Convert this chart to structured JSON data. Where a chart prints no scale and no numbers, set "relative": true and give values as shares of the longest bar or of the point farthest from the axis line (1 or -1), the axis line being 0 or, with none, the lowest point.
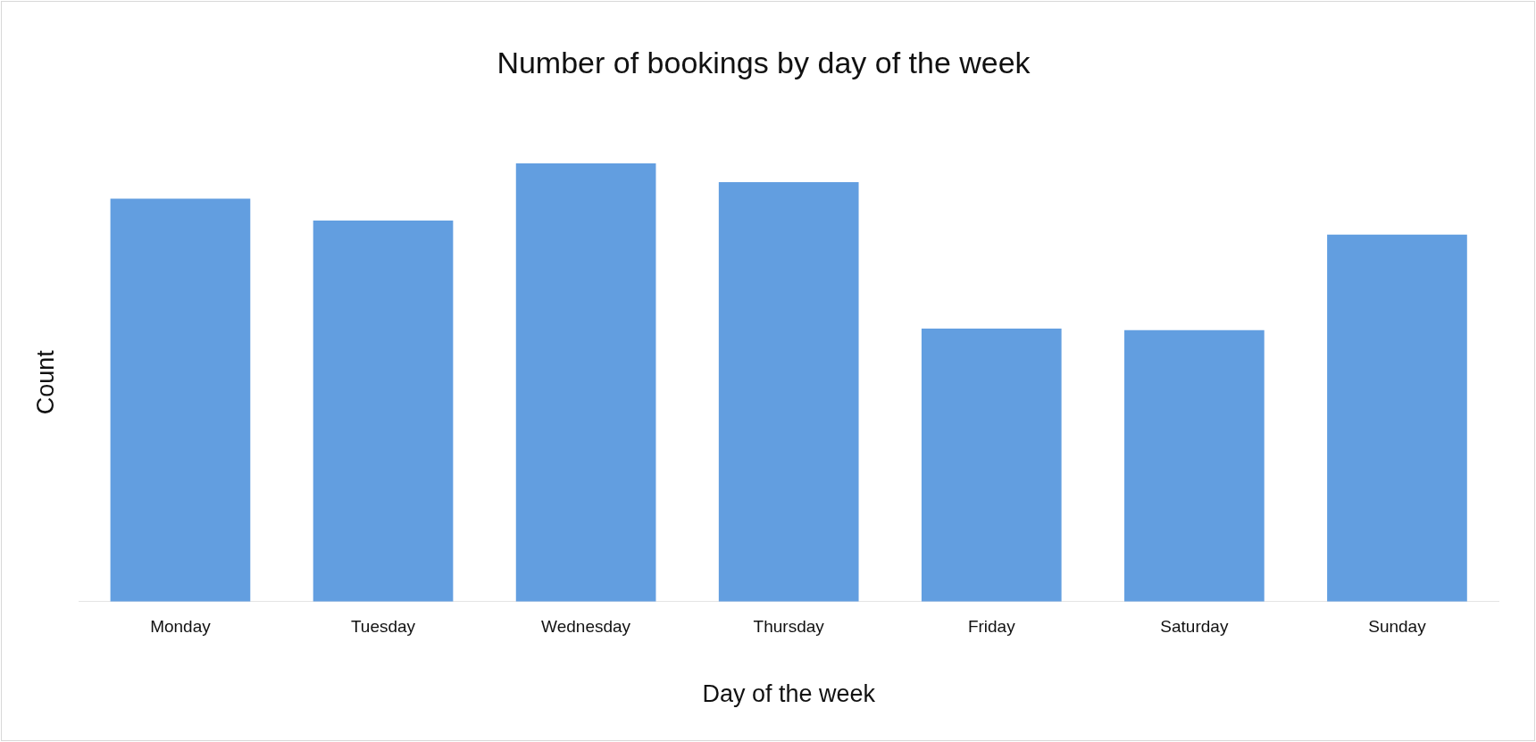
{
  "chart_data": {
    "type": "bar",
    "title": "Number of bookings by day of the week",
    "xlabel": "Day of the week",
    "ylabel": "Count",
    "categories": [
      "Monday",
      "Tuesday",
      "Wednesday",
      "Thursday",
      "Friday",
      "Saturday",
      "Sunday"
    ],
    "values": [
      0.919,
      0.869,
      1,
      0.957,
      0.623,
      0.619,
      0.837
    ],
    "color": "#629ee0",
    "relative": true
  }
}
